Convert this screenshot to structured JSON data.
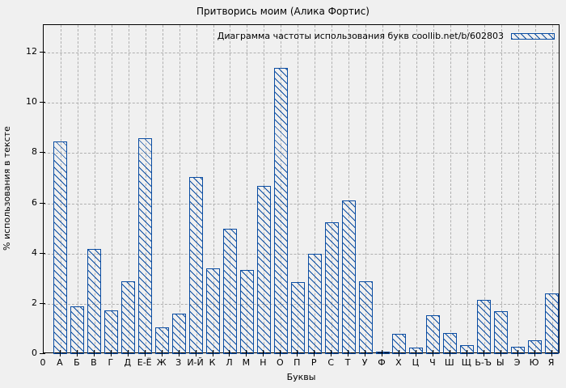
{
  "chart": {
    "title": "Притворись моим (Алика Фортис)",
    "legend_label": "Диаграмма частоты использования букв coollib.net/b/602803",
    "ylabel": "% использования в тексте",
    "xlabel": "Буквы",
    "origin_label": "0"
  },
  "chart_data": {
    "type": "bar",
    "title": "Притворись моим (Алика Фортис)",
    "legend": [
      "Диаграмма частоты использования букв coollib.net/b/602803"
    ],
    "legend_position": "top-right-inside",
    "xlabel": "Буквы",
    "ylabel": "% использования в тексте",
    "ylim": [
      0,
      13.1
    ],
    "yticks": [
      0,
      2,
      4,
      6,
      8,
      10,
      12
    ],
    "grid": true,
    "bar_style": "diagonal-hatch",
    "bar_color": "#0b4da2",
    "grid_color": "#b0b0b0",
    "background_color": "#f0f0f0",
    "categories": [
      "А",
      "Б",
      "В",
      "Г",
      "Д",
      "Е-Ё",
      "Ж",
      "З",
      "И-Й",
      "К",
      "Л",
      "М",
      "Н",
      "О",
      "П",
      "Р",
      "С",
      "Т",
      "У",
      "Ф",
      "Х",
      "Ц",
      "Ч",
      "Ш",
      "Щ",
      "Ь-Ъ",
      "Ы",
      "Э",
      "Ю",
      "Я"
    ],
    "values": [
      8.45,
      1.9,
      4.2,
      1.75,
      2.9,
      8.6,
      1.05,
      1.6,
      7.05,
      3.4,
      5.0,
      3.35,
      6.7,
      11.4,
      2.85,
      4.0,
      5.25,
      6.1,
      2.9,
      0.1,
      0.8,
      0.25,
      1.55,
      0.85,
      0.35,
      2.15,
      1.7,
      0.3,
      0.55,
      2.4
    ]
  }
}
